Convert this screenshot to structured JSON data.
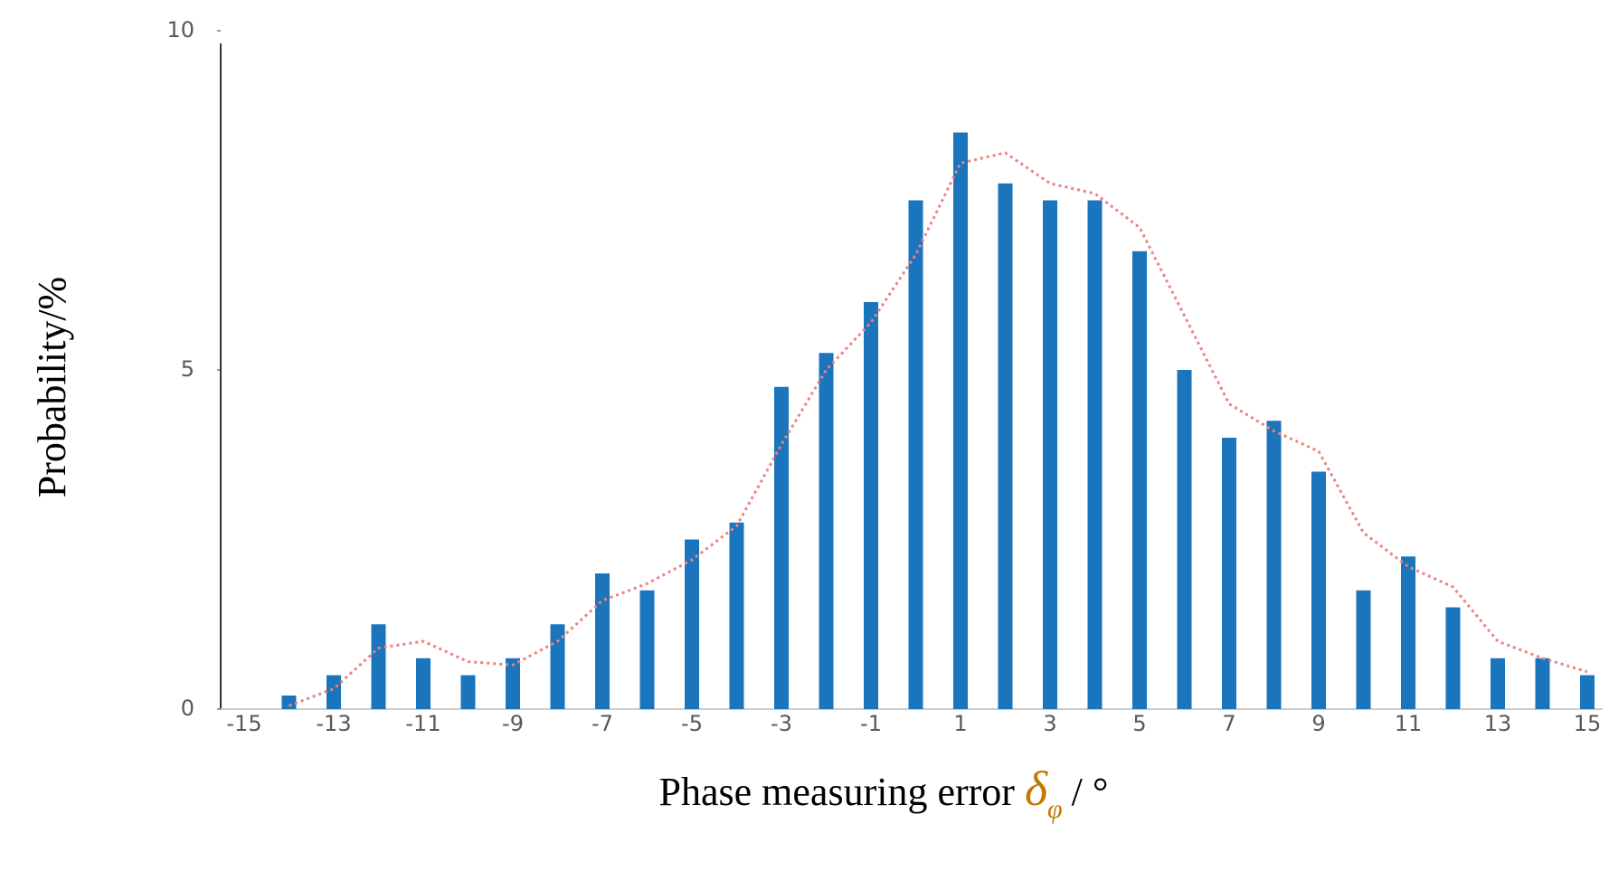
{
  "chart_data": {
    "type": "bar",
    "xlabel": "Phase measuring error",
    "xlabel_symbol": "δ",
    "xlabel_subscript": "φ",
    "xlabel_unit": "/ °",
    "ylabel": "Probability/%",
    "x": [
      -14,
      -13,
      -12,
      -11,
      -10,
      -9,
      -8,
      -7,
      -6,
      -5,
      -4,
      -3,
      -2,
      -1,
      0,
      1,
      2,
      3,
      4,
      5,
      6,
      7,
      8,
      9,
      10,
      11,
      12,
      13,
      14,
      15
    ],
    "series": [
      {
        "type": "bar",
        "color": "#1a75bc",
        "values": [
          0.2,
          0.5,
          1.25,
          0.75,
          0.5,
          0.75,
          1.25,
          2.0,
          1.75,
          2.5,
          2.75,
          4.75,
          5.25,
          6.0,
          7.5,
          8.5,
          7.75,
          7.5,
          7.5,
          6.75,
          5.0,
          4.0,
          4.25,
          3.5,
          1.75,
          2.25,
          1.5,
          0.75,
          0.75,
          0.5
        ]
      },
      {
        "type": "line",
        "color": "#f08080",
        "dotted": true,
        "values": [
          0.05,
          0.3,
          0.9,
          1.0,
          0.7,
          0.65,
          1.0,
          1.6,
          1.85,
          2.2,
          2.7,
          3.9,
          5.0,
          5.7,
          6.7,
          8.05,
          8.2,
          7.75,
          7.6,
          7.1,
          5.8,
          4.5,
          4.1,
          3.8,
          2.6,
          2.1,
          1.8,
          1.0,
          0.75,
          0.55
        ]
      }
    ],
    "xlim": [
      -15,
      15
    ],
    "xticks": [
      -15,
      -13,
      -11,
      -9,
      -7,
      -5,
      -3,
      -1,
      1,
      3,
      5,
      7,
      9,
      11,
      13,
      15
    ],
    "ylim": [
      0,
      10
    ],
    "yticks": [
      0,
      5,
      10
    ],
    "grid": false
  }
}
